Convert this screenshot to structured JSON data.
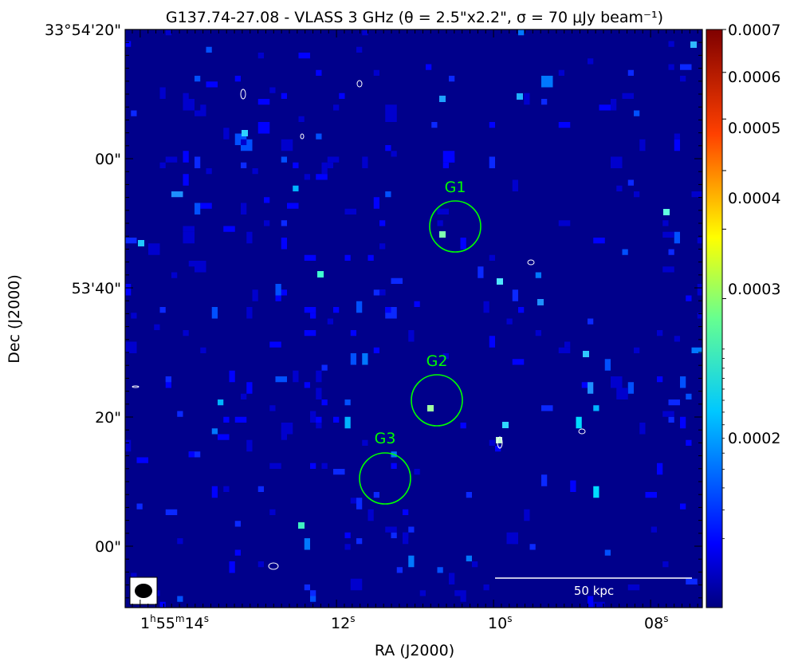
{
  "chart_data": {
    "type": "heatmap",
    "title": "G137.74-27.08 - VLASS 3 GHz (θ = 2.5\"x2.2\", σ =  70 μJy beam⁻¹)",
    "xlabel": "RA (J2000)",
    "ylabel": "Dec (J2000)",
    "x_ticks": [
      {
        "label": "1h55m14s",
        "base": "1",
        "sup1": "h",
        "mid": "55",
        "sup2": "m",
        "tail": "14",
        "sup3": "s"
      },
      {
        "label": "12s",
        "base": "12",
        "sup1": "s"
      },
      {
        "label": "10s",
        "base": "10",
        "sup1": "s"
      },
      {
        "label": "08s",
        "base": "08",
        "sup1": "s"
      }
    ],
    "y_ticks": [
      "33°54'20\"",
      "00\"",
      "53'40\"",
      "20\"",
      "00\""
    ],
    "colorbar": {
      "vmax": 0.0007,
      "stretch": "sqrt",
      "ticks": [
        "0.0007",
        "0.0006",
        "0.0005",
        "0.0004",
        "0.0003",
        "0.0002"
      ],
      "colormap": "jet"
    },
    "background_color": "#00008b",
    "sources": [
      {
        "name": "G1",
        "label_color": "#00ff00"
      },
      {
        "name": "G2",
        "label_color": "#00ff00"
      },
      {
        "name": "G3",
        "label_color": "#00ff00"
      }
    ],
    "scalebar_label": "50 kpc",
    "beam_shape": "ellipse"
  }
}
